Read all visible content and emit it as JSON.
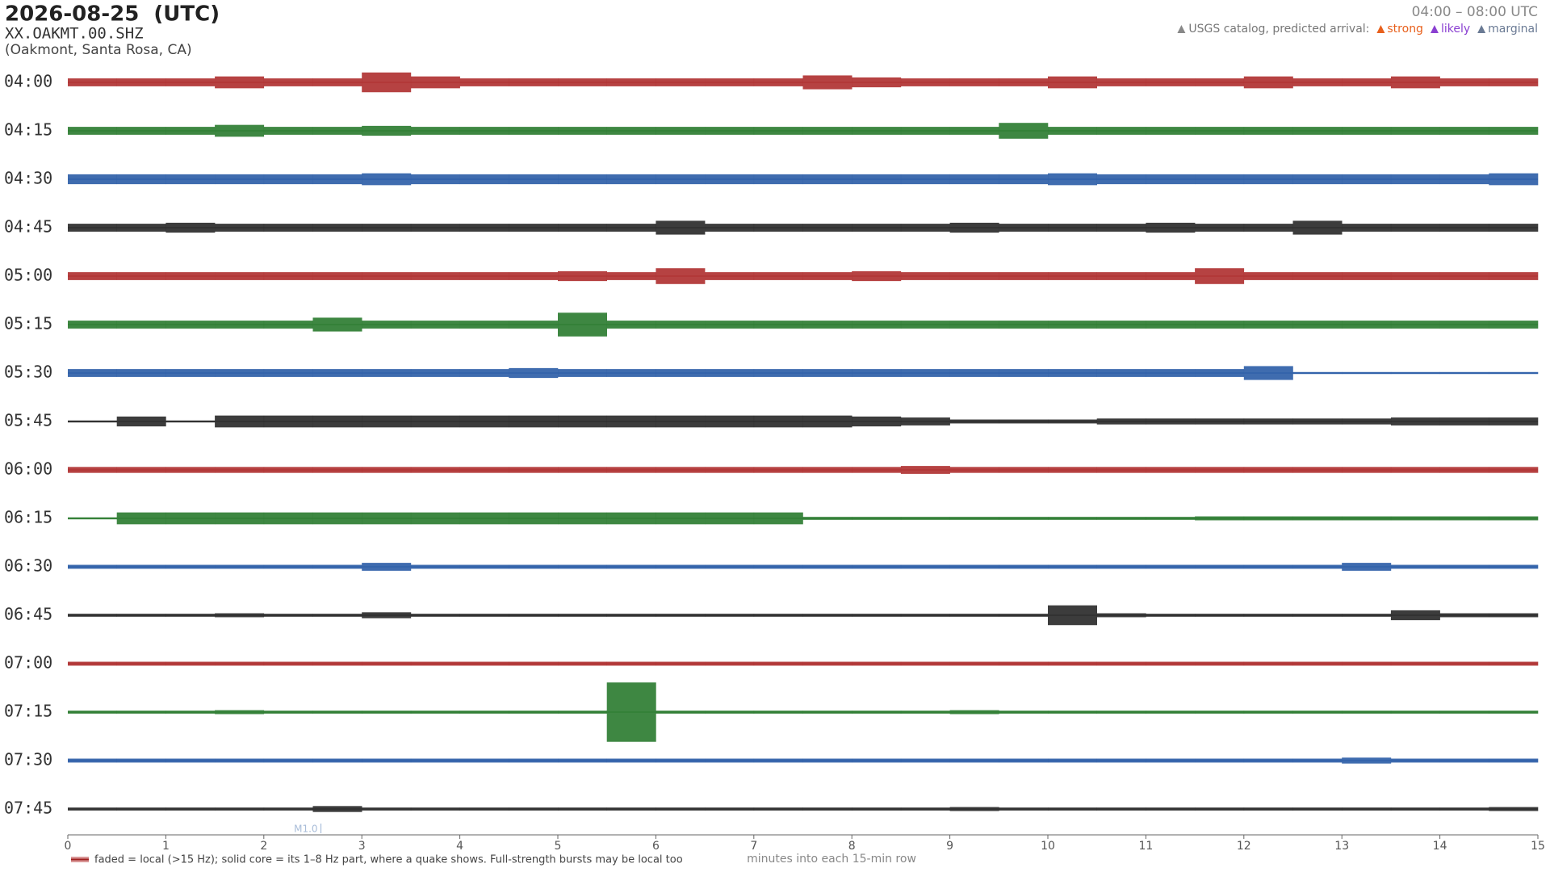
{
  "chart_data": {
    "type": "helicorder",
    "title": "2026-08-25  (UTC)",
    "station": "XX.OAKMT.00.SHZ",
    "location": "(Oakmont, Santa Rosa, CA)",
    "time_range": "04:00 – 08:00 UTC",
    "legend": {
      "title": "USGS catalog, predicted arrival:",
      "items": [
        {
          "name": "strong",
          "color": "#e8601c"
        },
        {
          "name": "likely",
          "color": "#8a3fd1"
        },
        {
          "name": "marginal",
          "color": "#6a7a94"
        }
      ]
    },
    "xlabel": "minutes into each 15-min row",
    "footnote": "faded = local (>15 Hz); solid core = its 1–8 Hz part, where a quake shows. Full-strength bursts may be local too",
    "xlim": [
      0,
      15
    ],
    "xticks": [
      0,
      1,
      2,
      3,
      4,
      5,
      6,
      7,
      8,
      9,
      10,
      11,
      12,
      13,
      14,
      15
    ],
    "annotations": [
      {
        "text": "M1.0",
        "x": 2.55
      }
    ],
    "series": [
      {
        "name": "04:00",
        "color": "#b03232",
        "values": [
          4,
          4,
          4,
          6,
          4,
          4,
          10,
          6,
          4,
          4,
          4,
          4,
          4,
          4,
          4,
          7,
          5,
          4,
          4,
          4,
          6,
          4,
          4,
          4,
          6,
          4,
          4,
          6,
          4,
          4
        ]
      },
      {
        "name": "04:15",
        "color": "#2e7d32",
        "values": [
          4,
          4,
          4,
          6,
          4,
          4,
          5,
          4,
          4,
          4,
          4,
          4,
          4,
          4,
          4,
          4,
          4,
          4,
          4,
          8,
          4,
          4,
          4,
          4,
          4,
          4,
          4,
          4,
          4,
          4
        ]
      },
      {
        "name": "04:30",
        "color": "#2f5fa8",
        "values": [
          5,
          5,
          5,
          5,
          5,
          5,
          6,
          5,
          5,
          5,
          5,
          5,
          5,
          5,
          5,
          5,
          5,
          5,
          5,
          5,
          6,
          5,
          5,
          5,
          5,
          5,
          5,
          5,
          5,
          6
        ]
      },
      {
        "name": "04:45",
        "color": "#2b2b2b",
        "values": [
          4,
          4,
          5,
          4,
          4,
          4,
          4,
          4,
          4,
          4,
          4,
          4,
          7,
          4,
          4,
          4,
          4,
          4,
          5,
          4,
          4,
          4,
          5,
          4,
          4,
          7,
          4,
          4,
          4,
          4
        ]
      },
      {
        "name": "05:00",
        "color": "#b03232",
        "values": [
          4,
          4,
          4,
          4,
          4,
          4,
          4,
          4,
          4,
          4,
          5,
          4,
          8,
          4,
          4,
          4,
          5,
          4,
          4,
          4,
          4,
          4,
          4,
          8,
          4,
          4,
          4,
          4,
          4,
          4
        ]
      },
      {
        "name": "05:15",
        "color": "#2e7d32",
        "values": [
          4,
          4,
          4,
          4,
          4,
          7,
          4,
          4,
          4,
          4,
          12,
          4,
          4,
          4,
          4,
          4,
          4,
          4,
          4,
          4,
          4,
          4,
          4,
          4,
          4,
          4,
          4,
          4,
          4,
          4
        ]
      },
      {
        "name": "05:30",
        "color": "#2f5fa8",
        "values": [
          4,
          4,
          4,
          4,
          4,
          4,
          4,
          4,
          4,
          5,
          4,
          4,
          4,
          4,
          4,
          4,
          4,
          4,
          4,
          4,
          4,
          4,
          4,
          4,
          7,
          1,
          1,
          1,
          1,
          1
        ]
      },
      {
        "name": "05:45",
        "color": "#2b2b2b",
        "values": [
          1,
          5,
          1,
          6,
          6,
          6,
          6,
          6,
          6,
          6,
          6,
          6,
          6,
          6,
          6,
          6,
          5,
          4,
          2,
          2,
          2,
          3,
          3,
          3,
          3,
          3,
          3,
          4,
          4,
          4
        ]
      },
      {
        "name": "06:00",
        "color": "#b03232",
        "values": [
          3,
          3,
          3,
          3,
          3,
          3,
          3,
          3,
          3,
          3,
          3,
          3,
          3,
          3,
          3,
          3,
          3,
          4,
          3,
          3,
          3,
          3,
          3,
          3,
          3,
          3,
          3,
          3,
          3,
          3
        ]
      },
      {
        "name": "06:15",
        "color": "#2e7d32",
        "values": [
          1,
          6,
          6,
          6,
          6,
          6,
          6,
          6,
          6,
          6,
          6,
          6,
          6,
          6,
          6,
          1.5,
          1.5,
          1.5,
          1.5,
          1.5,
          1.5,
          1.5,
          1.5,
          2,
          2,
          2,
          2,
          2,
          2,
          2
        ]
      },
      {
        "name": "06:30",
        "color": "#2f5fa8",
        "values": [
          2,
          2,
          2,
          2,
          2,
          2,
          4,
          2,
          2,
          2,
          2,
          2,
          2,
          2,
          2,
          2,
          2,
          2,
          2,
          2,
          2,
          2,
          2,
          2,
          2,
          2,
          4,
          2,
          2,
          2
        ]
      },
      {
        "name": "06:45",
        "color": "#2b2b2b",
        "values": [
          1.5,
          1.5,
          1.5,
          2,
          1.5,
          1.5,
          3,
          1.5,
          1.5,
          1.5,
          1.5,
          1.5,
          1.5,
          1.5,
          1.5,
          1.5,
          1.5,
          1.5,
          1.5,
          1.5,
          10,
          2,
          1.5,
          1.5,
          1.5,
          1.5,
          1.5,
          5,
          2,
          2
        ]
      },
      {
        "name": "07:00",
        "color": "#b03232",
        "values": [
          2,
          2,
          2,
          2,
          2,
          2,
          2,
          2,
          2,
          2,
          2,
          2,
          2,
          2,
          2,
          2,
          2,
          2,
          2,
          2,
          2,
          2,
          2,
          2,
          2,
          2,
          2,
          2,
          2,
          2
        ]
      },
      {
        "name": "07:15",
        "color": "#2e7d32",
        "values": [
          1.5,
          1.5,
          1.5,
          2,
          1.5,
          1.5,
          1.5,
          1.5,
          1.5,
          1.5,
          1.5,
          30,
          1.5,
          1.5,
          1.5,
          1.5,
          1.5,
          1.5,
          2,
          1.5,
          1.5,
          1.5,
          1.5,
          1.5,
          1.5,
          1.5,
          1.5,
          1.5,
          1.5,
          1.5
        ]
      },
      {
        "name": "07:30",
        "color": "#2f5fa8",
        "values": [
          2,
          2,
          2,
          2,
          2,
          2,
          2,
          2,
          2,
          2,
          2,
          2,
          2,
          2,
          2,
          2,
          2,
          2,
          2,
          2,
          2,
          2,
          2,
          2,
          2,
          2,
          3,
          2,
          2,
          2
        ]
      },
      {
        "name": "07:45",
        "color": "#2b2b2b",
        "values": [
          1.5,
          1.5,
          1.5,
          1.5,
          1.5,
          3,
          1.5,
          1.5,
          1.5,
          1.5,
          1.5,
          1.5,
          1.5,
          1.5,
          1.5,
          1.5,
          1.5,
          1.5,
          2,
          1.5,
          1.5,
          1.5,
          1.5,
          1.5,
          1.5,
          1.5,
          1.5,
          1.5,
          1.5,
          2
        ]
      }
    ]
  }
}
